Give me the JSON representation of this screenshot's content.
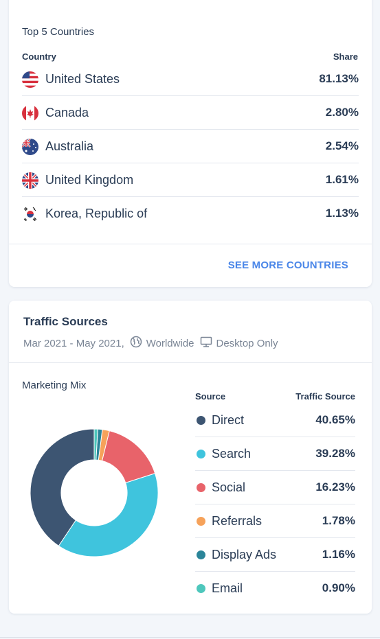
{
  "countries": {
    "title": "Top 5 Countries",
    "header_country": "Country",
    "header_share": "Share",
    "rows": [
      {
        "name": "United States",
        "share": "81.13%",
        "flag": "us-flag-icon"
      },
      {
        "name": "Canada",
        "share": "2.80%",
        "flag": "canada-flag-icon"
      },
      {
        "name": "Australia",
        "share": "2.54%",
        "flag": "australia-flag-icon"
      },
      {
        "name": "United Kingdom",
        "share": "1.61%",
        "flag": "uk-flag-icon"
      },
      {
        "name": "Korea, Republic of",
        "share": "1.13%",
        "flag": "korea-flag-icon"
      }
    ],
    "see_more": "SEE MORE COUNTRIES"
  },
  "traffic": {
    "title": "Traffic Sources",
    "date_range": "Mar 2021 - May 2021,",
    "region": "Worldwide",
    "device": "Desktop Only",
    "mix_title": "Marketing Mix",
    "header_source": "Source",
    "header_value": "Traffic Source"
  },
  "chart_data": {
    "type": "pie",
    "title": "Marketing Mix",
    "categories": [
      "Direct",
      "Search",
      "Social",
      "Referrals",
      "Display Ads",
      "Email"
    ],
    "labels": [
      "40.65%",
      "39.28%",
      "16.23%",
      "1.78%",
      "1.16%",
      "0.90%"
    ],
    "values": [
      40.65,
      39.28,
      16.23,
      1.78,
      1.16,
      0.9
    ],
    "colors": [
      "#3d5572",
      "#3fc4dd",
      "#e8636a",
      "#f6a25a",
      "#2b8599",
      "#4ec7bc"
    ],
    "hole": "donut"
  },
  "colors": {
    "accent_link": "#4a86e8",
    "text": "#2a3c55",
    "muted": "#7a8595"
  }
}
